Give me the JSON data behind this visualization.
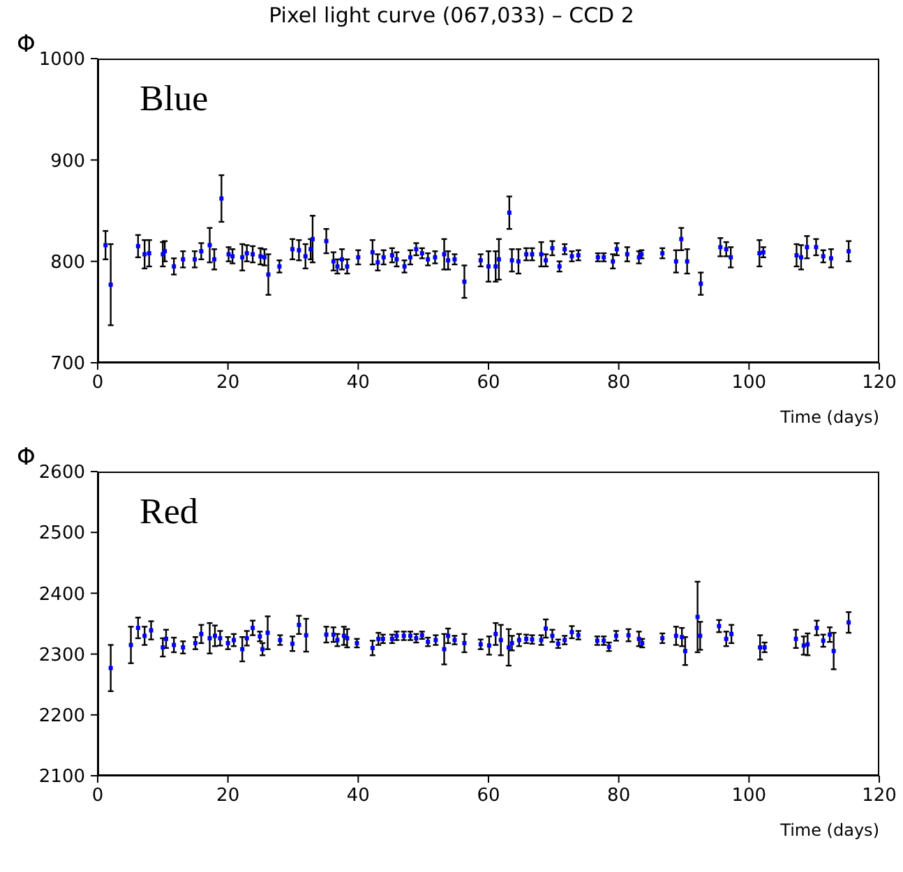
{
  "chart_data": [
    {
      "type": "scatter",
      "title": "Pixel light curve (067,033) – CCD 2",
      "xlabel": "Time (days)",
      "ylabel": "Φ",
      "annotations": [
        "Blue"
      ],
      "marker": "square",
      "grid": false,
      "legend": false,
      "xlim": [
        0,
        120
      ],
      "xticks": [
        0,
        20,
        40,
        60,
        80,
        100,
        120
      ],
      "ylim": [
        700,
        1000
      ],
      "yticks": [
        700,
        800,
        900,
        1000
      ],
      "series": [
        {
          "color": "#0000ff",
          "x": [
            1.2,
            2.0,
            6.2,
            7.2,
            7.9,
            10.0,
            10.3,
            11.7,
            13.1,
            14.9,
            15.9,
            17.2,
            17.9,
            19.0,
            20.1,
            20.7,
            22.2,
            22.9,
            23.8,
            25.0,
            25.6,
            26.2,
            27.9,
            29.9,
            30.9,
            31.9,
            32.7,
            33.0,
            35.1,
            36.2,
            36.8,
            37.5,
            38.3,
            40.0,
            42.2,
            43.0,
            43.9,
            45.2,
            45.9,
            47.1,
            48.0,
            48.9,
            49.8,
            50.7,
            51.8,
            53.2,
            53.8,
            54.8,
            56.3,
            58.8,
            60.0,
            61.1,
            61.6,
            63.2,
            63.6,
            64.6,
            65.8,
            66.7,
            68.1,
            68.8,
            69.8,
            70.9,
            71.7,
            72.8,
            73.8,
            76.8,
            77.7,
            79.1,
            79.7,
            81.3,
            83.1,
            83.5,
            86.7,
            88.8,
            89.6,
            90.5,
            92.6,
            95.6,
            96.5,
            97.2,
            101.6,
            102.2,
            107.3,
            108.0,
            108.9,
            110.3,
            111.4,
            112.6,
            115.3
          ],
          "values": [
            816,
            777,
            815,
            807,
            808,
            807,
            810,
            795,
            802,
            802,
            810,
            816,
            802,
            862,
            807,
            805,
            804,
            808,
            807,
            805,
            804,
            787,
            795,
            812,
            811,
            805,
            812,
            822,
            820,
            800,
            795,
            802,
            795,
            804,
            809,
            799,
            804,
            806,
            802,
            795,
            804,
            812,
            808,
            802,
            804,
            807,
            801,
            802,
            780,
            801,
            795,
            795,
            802,
            848,
            801,
            800,
            807,
            807,
            807,
            801,
            813,
            795,
            812,
            805,
            806,
            804,
            804,
            800,
            812,
            807,
            804,
            807,
            808,
            800,
            822,
            800,
            778,
            814,
            812,
            804,
            808,
            809,
            806,
            804,
            814,
            814,
            805,
            803,
            810
          ],
          "errors": [
            14,
            40,
            11,
            14,
            13,
            12,
            10,
            8,
            8,
            8,
            8,
            17,
            10,
            23,
            7,
            7,
            13,
            8,
            8,
            8,
            8,
            20,
            6,
            10,
            10,
            12,
            10,
            23,
            12,
            9,
            7,
            10,
            7,
            7,
            12,
            8,
            7,
            7,
            7,
            6,
            7,
            6,
            5,
            6,
            6,
            15,
            9,
            5,
            16,
            6,
            15,
            15,
            20,
            16,
            11,
            12,
            6,
            6,
            12,
            6,
            7,
            5,
            5,
            5,
            5,
            4,
            4,
            7,
            6,
            7,
            6,
            4,
            5,
            11,
            11,
            12,
            11,
            9,
            7,
            10,
            13,
            5,
            11,
            12,
            11,
            8,
            6,
            9,
            10
          ]
        }
      ]
    },
    {
      "type": "scatter",
      "xlabel": "Time (days)",
      "ylabel": "Φ",
      "annotations": [
        "Red"
      ],
      "marker": "square",
      "grid": false,
      "legend": false,
      "xlim": [
        0,
        120
      ],
      "xticks": [
        0,
        20,
        40,
        60,
        80,
        100,
        120
      ],
      "ylim": [
        2100,
        2600
      ],
      "yticks": [
        2100,
        2200,
        2300,
        2400,
        2500,
        2600
      ],
      "series": [
        {
          "color": "#0000ff",
          "x": [
            2.0,
            5.1,
            6.2,
            7.2,
            8.2,
            10.0,
            10.5,
            11.7,
            13.1,
            15.0,
            15.9,
            17.2,
            18.0,
            18.8,
            20.0,
            20.9,
            22.2,
            22.9,
            23.8,
            24.9,
            25.3,
            26.1,
            28.0,
            29.9,
            30.9,
            32.0,
            35.1,
            36.2,
            36.8,
            37.8,
            38.3,
            39.8,
            42.2,
            43.1,
            43.8,
            45.2,
            45.9,
            47.0,
            48.0,
            48.9,
            49.8,
            50.7,
            51.9,
            53.2,
            53.8,
            54.8,
            56.3,
            58.8,
            60.1,
            61.1,
            61.9,
            63.1,
            63.6,
            64.7,
            65.8,
            66.7,
            68.1,
            68.8,
            69.8,
            70.7,
            71.7,
            72.8,
            73.8,
            76.7,
            77.7,
            78.5,
            79.6,
            81.5,
            83.1,
            83.6,
            86.7,
            88.8,
            89.7,
            90.2,
            92.1,
            92.5,
            95.4,
            96.5,
            97.3,
            101.7,
            102.4,
            107.2,
            108.4,
            109.0,
            110.4,
            111.4,
            112.4,
            113.0,
            115.3
          ],
          "values": [
            2277,
            2315,
            2343,
            2330,
            2339,
            2311,
            2325,
            2315,
            2311,
            2318,
            2333,
            2326,
            2330,
            2326,
            2318,
            2323,
            2308,
            2326,
            2343,
            2329,
            2308,
            2335,
            2323,
            2317,
            2348,
            2331,
            2332,
            2332,
            2323,
            2330,
            2326,
            2318,
            2310,
            2325,
            2325,
            2325,
            2330,
            2330,
            2330,
            2326,
            2331,
            2320,
            2323,
            2308,
            2330,
            2323,
            2318,
            2316,
            2314,
            2333,
            2323,
            2311,
            2318,
            2323,
            2325,
            2324,
            2323,
            2342,
            2330,
            2317,
            2323,
            2336,
            2331,
            2322,
            2322,
            2312,
            2330,
            2331,
            2325,
            2318,
            2326,
            2330,
            2328,
            2305,
            2361,
            2330,
            2346,
            2325,
            2333,
            2311,
            2311,
            2325,
            2314,
            2316,
            2343,
            2322,
            2332,
            2305,
            2352
          ],
          "errors": [
            38,
            30,
            17,
            15,
            15,
            15,
            15,
            12,
            10,
            10,
            15,
            25,
            17,
            12,
            10,
            10,
            20,
            12,
            12,
            8,
            10,
            27,
            8,
            12,
            15,
            27,
            13,
            12,
            10,
            15,
            15,
            7,
            12,
            10,
            7,
            7,
            7,
            7,
            7,
            7,
            6,
            7,
            8,
            25,
            12,
            7,
            15,
            8,
            15,
            18,
            25,
            30,
            12,
            10,
            7,
            7,
            8,
            15,
            10,
            7,
            7,
            10,
            7,
            7,
            7,
            7,
            8,
            10,
            12,
            7,
            8,
            15,
            15,
            23,
            58,
            23,
            10,
            12,
            15,
            20,
            8,
            15,
            15,
            18,
            12,
            10,
            12,
            30,
            17
          ]
        }
      ]
    }
  ]
}
